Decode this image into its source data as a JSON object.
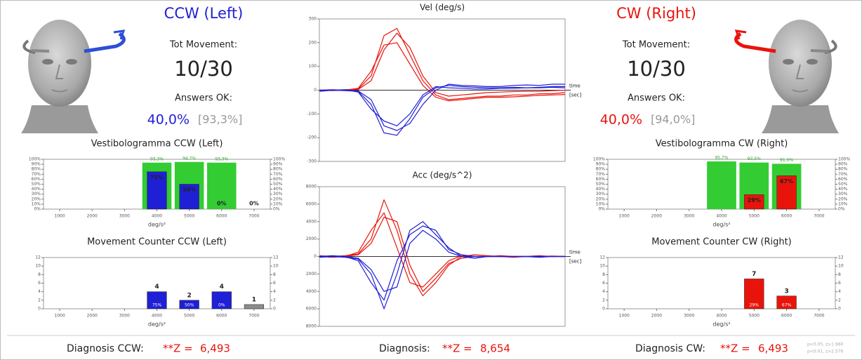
{
  "left": {
    "title": "CCW (Left)",
    "tot_label": "Tot Movement:",
    "tot_value": "10/30",
    "answers_label": "Answers OK:",
    "answers_pct": "40,0%",
    "answers_ref": "[93,3%]"
  },
  "right": {
    "title": "CW (Right)",
    "tot_label": "Tot Movement:",
    "tot_value": "10/30",
    "answers_label": "Answers OK:",
    "answers_pct": "40,0%",
    "answers_ref": "[94,0%]"
  },
  "chart_data": [
    {
      "type": "bar",
      "title": "Vestibologramma CCW (Left)",
      "categories": [
        "1000",
        "2000",
        "3000",
        "4000",
        "5000",
        "6000",
        "7000"
      ],
      "x_label": "deg/s²",
      "ylim": [
        0,
        100
      ],
      "yticks": [
        {
          "value": 0,
          "label": "0%"
        },
        {
          "value": 10,
          "label": "10%"
        },
        {
          "value": 20,
          "label": "20%"
        },
        {
          "value": 30,
          "label": "30%"
        },
        {
          "value": 40,
          "label": "40%"
        },
        {
          "value": 50,
          "label": "50%"
        },
        {
          "value": 60,
          "label": "60%"
        },
        {
          "value": 70,
          "label": "70%"
        },
        {
          "value": 80,
          "label": "80%"
        },
        {
          "value": 90,
          "label": "90%"
        },
        {
          "value": 100,
          "label": "100%"
        }
      ],
      "reference_values": [
        null,
        null,
        null,
        93.3,
        94.7,
        93.3,
        null
      ],
      "reference_labels": [
        null,
        null,
        null,
        "93,3%",
        "94,7%",
        "93,3%",
        null
      ],
      "reference_color": "#33cc33",
      "values": [
        null,
        null,
        null,
        75,
        50,
        0,
        0
      ],
      "value_labels": [
        null,
        null,
        null,
        "75%",
        "50%",
        "0%",
        "0%"
      ],
      "color": "#1f1fd6"
    },
    {
      "type": "bar",
      "title": "Movement Counter CCW (Left)",
      "categories": [
        "1000",
        "2000",
        "3000",
        "4000",
        "5000",
        "6000",
        "7000"
      ],
      "x_label": "deg/s²",
      "ylim": [
        0,
        12
      ],
      "yticks": [
        0,
        2,
        4,
        6,
        8,
        10,
        12
      ],
      "values": [
        null,
        null,
        null,
        4,
        2,
        4,
        1
      ],
      "bar_colors": [
        null,
        null,
        null,
        "#1f1fd6",
        "#1f1fd6",
        "#1f1fd6",
        "#8c8c8c"
      ],
      "inner_values": [
        null,
        null,
        null,
        75,
        50,
        0,
        null
      ],
      "inner_labels": [
        null,
        null,
        null,
        "75%",
        "50%",
        "0%",
        null
      ]
    },
    {
      "type": "line",
      "title": "Vel (deg/s)",
      "axis_note": [
        "time",
        "[sec]"
      ],
      "ylim": [
        -300,
        300
      ],
      "yticks": [
        {
          "value": -300,
          "label": "-300"
        },
        {
          "value": -200,
          "label": "-200"
        },
        {
          "value": -100,
          "label": "-100"
        },
        0,
        100,
        200,
        300
      ],
      "series": [
        {
          "color": "#e8140c",
          "values": [
            0,
            0,
            2,
            5,
            60,
            230,
            260,
            150,
            40,
            -20,
            -40,
            -35,
            -30,
            -25,
            -25,
            -20,
            -20,
            -15,
            -15,
            -10
          ]
        },
        {
          "color": "#e8140c",
          "values": [
            0,
            -2,
            0,
            8,
            80,
            190,
            200,
            110,
            20,
            -30,
            -45,
            -40,
            -35,
            -30,
            -30,
            -28,
            -25,
            -22,
            -20,
            -18
          ]
        },
        {
          "color": "#e8140c",
          "values": [
            -5,
            0,
            0,
            3,
            40,
            170,
            240,
            180,
            60,
            -10,
            -25,
            -20,
            -15,
            -10,
            -8,
            -6,
            -5,
            -5,
            -2,
            0
          ]
        },
        {
          "color": "#1f1fd6",
          "values": [
            0,
            0,
            -2,
            -5,
            -60,
            -180,
            -190,
            -120,
            -30,
            10,
            20,
            15,
            12,
            10,
            10,
            12,
            10,
            12,
            15,
            15
          ]
        },
        {
          "color": "#1f1fd6",
          "values": [
            0,
            2,
            0,
            -3,
            -40,
            -150,
            -170,
            -140,
            -60,
            0,
            25,
            20,
            18,
            15,
            15,
            20,
            22,
            20,
            25,
            25
          ]
        },
        {
          "color": "#1f1fd6",
          "values": [
            -5,
            0,
            2,
            -8,
            -80,
            -130,
            -150,
            -100,
            -20,
            15,
            10,
            8,
            5,
            5,
            8,
            8,
            10,
            10,
            12,
            10
          ]
        }
      ]
    },
    {
      "type": "line",
      "title": "Acc (deg/s^2)",
      "axis_note": [
        "time",
        "[sec]"
      ],
      "ylim": [
        -8000,
        8000
      ],
      "yticks": [
        {
          "value": -8000,
          "label": "8000"
        },
        {
          "value": -6000,
          "label": "6000"
        },
        {
          "value": -4000,
          "label": "4000"
        },
        {
          "value": -2000,
          "label": "2000"
        },
        0,
        2000,
        4000,
        6000,
        8000
      ],
      "series": [
        {
          "color": "#e8140c",
          "values": [
            0,
            0,
            100,
            300,
            2000,
            6500,
            3000,
            -2000,
            -4500,
            -3000,
            -1000,
            0,
            200,
            100,
            0,
            -100,
            0,
            0,
            50,
            0
          ]
        },
        {
          "color": "#e8140c",
          "values": [
            0,
            -100,
            0,
            500,
            3000,
            5000,
            1000,
            -3000,
            -3500,
            -2000,
            -500,
            100,
            0,
            0,
            0,
            0,
            0,
            100,
            0,
            0
          ]
        },
        {
          "color": "#e8140c",
          "values": [
            100,
            0,
            0,
            200,
            1500,
            4500,
            4000,
            -1000,
            -4000,
            -2500,
            -800,
            -200,
            0,
            0,
            100,
            0,
            0,
            0,
            0,
            0
          ]
        },
        {
          "color": "#1f1fd6",
          "values": [
            0,
            0,
            -100,
            -300,
            -2000,
            -6000,
            -2000,
            3000,
            4000,
            2500,
            1000,
            0,
            -200,
            0,
            0,
            0,
            0,
            0,
            0,
            0
          ]
        },
        {
          "color": "#1f1fd6",
          "values": [
            0,
            100,
            0,
            -500,
            -3000,
            -5000,
            -500,
            2500,
            3500,
            3000,
            800,
            200,
            0,
            0,
            0,
            0,
            0,
            -100,
            0,
            0
          ]
        },
        {
          "color": "#1f1fd6",
          "values": [
            -100,
            0,
            0,
            -200,
            -1500,
            -4000,
            -3500,
            1500,
            3000,
            2000,
            500,
            0,
            0,
            0,
            0,
            0,
            0,
            0,
            0,
            0
          ]
        }
      ]
    },
    {
      "type": "bar",
      "title": "Vestibologramma CW (Right)",
      "categories": [
        "1000",
        "2000",
        "3000",
        "4000",
        "5000",
        "6000",
        "7000"
      ],
      "x_label": "deg/s²",
      "ylim": [
        0,
        100
      ],
      "yticks": [
        {
          "value": 0,
          "label": "0%"
        },
        {
          "value": 10,
          "label": "10%"
        },
        {
          "value": 20,
          "label": "20%"
        },
        {
          "value": 30,
          "label": "30%"
        },
        {
          "value": 40,
          "label": "40%"
        },
        {
          "value": 50,
          "label": "50%"
        },
        {
          "value": 60,
          "label": "60%"
        },
        {
          "value": 70,
          "label": "70%"
        },
        {
          "value": 80,
          "label": "80%"
        },
        {
          "value": 90,
          "label": "90%"
        },
        {
          "value": 100,
          "label": "100%"
        }
      ],
      "reference_values": [
        null,
        null,
        null,
        95.7,
        93.5,
        91.0,
        null
      ],
      "reference_labels": [
        null,
        null,
        null,
        "95,7%",
        "93,5%",
        "91,0%",
        null
      ],
      "reference_color": "#33cc33",
      "values": [
        null,
        null,
        null,
        null,
        29,
        67,
        null
      ],
      "value_labels": [
        null,
        null,
        null,
        null,
        "29%",
        "67%",
        null
      ],
      "color": "#e8140c"
    },
    {
      "type": "bar",
      "title": "Movement Counter CW (Right)",
      "categories": [
        "1000",
        "2000",
        "3000",
        "4000",
        "5000",
        "6000",
        "7000"
      ],
      "x_label": "deg/s²",
      "ylim": [
        0,
        12
      ],
      "yticks": [
        0,
        2,
        4,
        6,
        8,
        10,
        12
      ],
      "values": [
        null,
        null,
        null,
        null,
        7,
        3,
        null
      ],
      "color": "#e8140c",
      "inner_values": [
        null,
        null,
        null,
        null,
        29,
        67,
        null
      ],
      "inner_labels": [
        null,
        null,
        null,
        null,
        "29%",
        "67%",
        null
      ]
    }
  ],
  "diagnosis": {
    "left": {
      "label": "Diagnosis CCW:",
      "z_label": "**Z =",
      "value": "6,493"
    },
    "center": {
      "label": "Diagnosis:",
      "z_label": "**Z =",
      "value": "8,654"
    },
    "right": {
      "label": "Diagnosis CW:",
      "z_label": "**Z =",
      "value": "6,493"
    },
    "notes": [
      "p<0.05, z>1.960",
      "p<0.01, z>2.576"
    ]
  }
}
